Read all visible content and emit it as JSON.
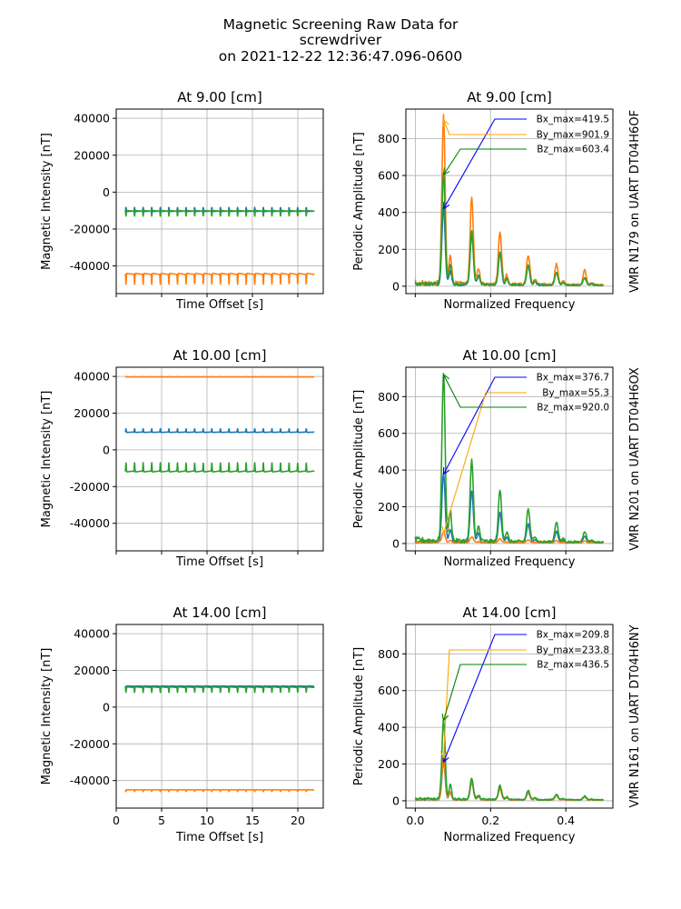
{
  "figure": {
    "title_lines": [
      "Magnetic Screening Raw Data for",
      "screwdriver",
      "on 2021-12-22 12:36:47.096-0600"
    ]
  },
  "colors": {
    "x": "#1f77b4",
    "y": "#ff7f0e",
    "z": "#2ca02c",
    "grid": "#b0b0b0"
  },
  "chart_data": [
    {
      "type": "line",
      "title": "At 9.00 [cm]",
      "xlabel": "Time Offset [s]",
      "ylabel": "Magnetic Intensity [nT]",
      "xlim": [
        0,
        22.8
      ],
      "ylim": [
        -55000,
        45000
      ],
      "xticks": [
        0,
        5,
        10,
        15,
        20
      ],
      "yticks": [
        40000,
        20000,
        0,
        -20000,
        -40000
      ],
      "xticklabels_visible": false,
      "grid": true,
      "pulse_count": 22,
      "t_start": 1.0,
      "t_end": 21.8,
      "series": [
        {
          "axis": "x",
          "color": "#1f77b4",
          "baseline": -10500,
          "amplitude": 2200,
          "direction": "up"
        },
        {
          "axis": "y",
          "color": "#ff7f0e",
          "baseline": -44000,
          "amplitude": 6000,
          "direction": "down"
        },
        {
          "axis": "z",
          "color": "#2ca02c",
          "baseline": -10000,
          "amplitude": 3000,
          "direction": "down"
        }
      ]
    },
    {
      "type": "line",
      "title": "At 9.00 [cm]",
      "xlabel": "Normalized Frequency",
      "ylabel": "Periodic Amplitude [nT]",
      "xlim": [
        -0.025,
        0.525
      ],
      "ylim": [
        -40,
        960
      ],
      "xticks": [
        0.0,
        0.2,
        0.4
      ],
      "yticks": [
        0,
        200,
        400,
        600,
        800
      ],
      "xticklabels_visible": false,
      "grid": true,
      "side_label": "VMR N179 on UART DT04H6OF",
      "peak_frequency": 0.075,
      "series": [
        {
          "axis": "x",
          "color": "#1f77b4",
          "max": 419.5,
          "label": "Bx_max=419.5",
          "harmonics": [
            419.5,
            275,
            175,
            105,
            70,
            40
          ]
        },
        {
          "axis": "y",
          "color": "#ff7f0e",
          "max": 901.9,
          "label": "By_max=901.9",
          "harmonics": [
            901.9,
            470,
            290,
            160,
            110,
            80
          ]
        },
        {
          "axis": "z",
          "color": "#2ca02c",
          "max": 603.4,
          "label": "Bz_max=603.4",
          "harmonics": [
            603.4,
            285,
            175,
            105,
            70,
            40
          ]
        }
      ]
    },
    {
      "type": "line",
      "title": "At 10.00 [cm]",
      "xlabel": "Time Offset [s]",
      "ylabel": "Magnetic Intensity [nT]",
      "xlim": [
        0,
        22.8
      ],
      "ylim": [
        -55000,
        45000
      ],
      "xticks": [
        0,
        5,
        10,
        15,
        20
      ],
      "yticks": [
        40000,
        20000,
        0,
        -20000,
        -40000
      ],
      "xticklabels_visible": false,
      "grid": true,
      "pulse_count": 22,
      "t_start": 1.0,
      "t_end": 21.8,
      "series": [
        {
          "axis": "x",
          "color": "#1f77b4",
          "baseline": 9500,
          "amplitude": 2000,
          "direction": "up"
        },
        {
          "axis": "y",
          "color": "#ff7f0e",
          "baseline": 39700,
          "amplitude": 300,
          "direction": "up"
        },
        {
          "axis": "z",
          "color": "#2ca02c",
          "baseline": -12000,
          "amplitude": 5000,
          "direction": "up"
        }
      ]
    },
    {
      "type": "line",
      "title": "At 10.00 [cm]",
      "xlabel": "Normalized Frequency",
      "ylabel": "Periodic Amplitude [nT]",
      "xlim": [
        -0.025,
        0.525
      ],
      "ylim": [
        -40,
        960
      ],
      "xticks": [
        0.0,
        0.2,
        0.4
      ],
      "yticks": [
        0,
        200,
        400,
        600,
        800
      ],
      "xticklabels_visible": false,
      "grid": true,
      "side_label": "VMR N201 on UART DT04H6OX",
      "peak_frequency": 0.075,
      "series": [
        {
          "axis": "x",
          "color": "#1f77b4",
          "max": 376.7,
          "label": "Bx_max=376.7",
          "harmonics": [
            376.7,
            280,
            160,
            100,
            60,
            35
          ]
        },
        {
          "axis": "y",
          "color": "#ff7f0e",
          "max": 55.3,
          "label": "By_max=55.3",
          "harmonics": [
            55.3,
            30,
            20,
            15,
            12,
            10
          ]
        },
        {
          "axis": "z",
          "color": "#2ca02c",
          "max": 920.0,
          "label": "Bz_max=920.0",
          "harmonics": [
            920.0,
            440,
            280,
            180,
            110,
            60
          ]
        }
      ]
    },
    {
      "type": "line",
      "title": "At 14.00 [cm]",
      "xlabel": "Time Offset [s]",
      "ylabel": "Magnetic Intensity [nT]",
      "xlim": [
        0,
        22.8
      ],
      "ylim": [
        -55000,
        45000
      ],
      "xticks": [
        0,
        5,
        10,
        15,
        20
      ],
      "yticks": [
        40000,
        20000,
        0,
        -20000,
        -40000
      ],
      "xticklabels_visible": true,
      "grid": true,
      "pulse_count": 22,
      "t_start": 1.0,
      "t_end": 21.8,
      "series": [
        {
          "axis": "x",
          "color": "#1f77b4",
          "baseline": 11500,
          "amplitude": 1200,
          "direction": "down"
        },
        {
          "axis": "y",
          "color": "#ff7f0e",
          "baseline": -45000,
          "amplitude": 1000,
          "direction": "down"
        },
        {
          "axis": "z",
          "color": "#2ca02c",
          "baseline": 11000,
          "amplitude": 3000,
          "direction": "down"
        }
      ]
    },
    {
      "type": "line",
      "title": "At 14.00 [cm]",
      "xlabel": "Normalized Frequency",
      "ylabel": "Periodic Amplitude [nT]",
      "xlim": [
        -0.025,
        0.525
      ],
      "ylim": [
        -40,
        960
      ],
      "xticks": [
        0.0,
        0.2,
        0.4
      ],
      "xticklabels": [
        "0.0",
        "0.2",
        "0.4"
      ],
      "yticks": [
        0,
        200,
        400,
        600,
        800
      ],
      "xticklabels_visible": true,
      "grid": true,
      "side_label": "VMR N161 on UART DT04H6NY",
      "peak_frequency": 0.075,
      "series": [
        {
          "axis": "x",
          "color": "#1f77b4",
          "max": 209.8,
          "label": "Bx_max=209.8",
          "harmonics": [
            209.8,
            95,
            65,
            40,
            25,
            15
          ]
        },
        {
          "axis": "y",
          "color": "#ff7f0e",
          "max": 233.8,
          "label": "By_max=233.8",
          "harmonics": [
            233.8,
            105,
            60,
            40,
            25,
            15
          ]
        },
        {
          "axis": "z",
          "color": "#2ca02c",
          "max": 436.5,
          "label": "Bz_max=436.5",
          "harmonics": [
            436.5,
            115,
            75,
            50,
            30,
            20
          ]
        }
      ]
    }
  ]
}
